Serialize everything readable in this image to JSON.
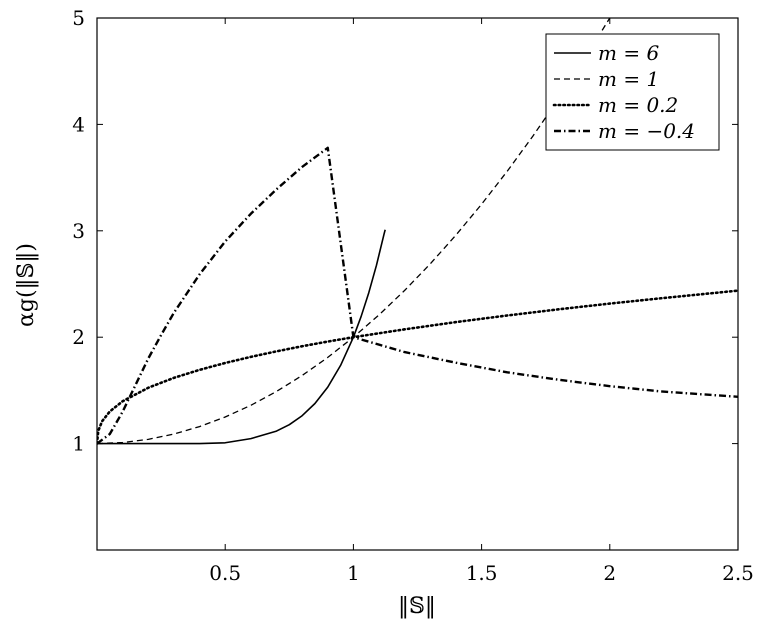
{
  "chart_data": {
    "type": "line",
    "xlabel": "‖𝕊‖",
    "ylabel": "αg(‖𝕊‖)",
    "xlim": [
      0,
      2.5
    ],
    "ylim": [
      0,
      5
    ],
    "x_ticks": [
      0.5,
      1,
      1.5,
      2,
      2.5
    ],
    "x_tick_labels": [
      "0.5",
      "1",
      "1.5",
      "2",
      "2.5"
    ],
    "y_ticks": [
      1,
      2,
      3,
      4,
      5
    ],
    "y_tick_labels": [
      "1",
      "2",
      "3",
      "4",
      "5"
    ],
    "grid": false,
    "legend_position": "top-right",
    "series": [
      {
        "name": "m = 6",
        "style": "solid",
        "color": "#000000",
        "x": [
          0,
          0.1,
          0.2,
          0.3,
          0.4,
          0.5,
          0.6,
          0.7,
          0.75,
          0.8,
          0.85,
          0.9,
          0.95,
          1.0,
          1.03,
          1.06,
          1.09,
          1.12,
          1.124
        ],
        "y": [
          1,
          1,
          1,
          1,
          1.0002,
          1.0078,
          1.0467,
          1.1176,
          1.178,
          1.262,
          1.377,
          1.531,
          1.735,
          2.0,
          2.194,
          2.418,
          2.677,
          2.974,
          3.01
        ]
      },
      {
        "name": "m = 1",
        "style": "dashed",
        "color": "#000000",
        "x": [
          0,
          0.1,
          0.2,
          0.3,
          0.4,
          0.5,
          0.6,
          0.7,
          0.8,
          0.9,
          1.0,
          1.1,
          1.2,
          1.3,
          1.4,
          1.5,
          1.6,
          1.7,
          1.8,
          1.9,
          2.0
        ],
        "y": [
          1,
          1.01,
          1.04,
          1.09,
          1.16,
          1.25,
          1.36,
          1.49,
          1.64,
          1.81,
          2.0,
          2.21,
          2.44,
          2.69,
          2.96,
          3.25,
          3.56,
          3.89,
          4.24,
          4.61,
          5.0
        ]
      },
      {
        "name": "m = 0.2",
        "style": "dotted",
        "color": "#000000",
        "x": [
          0.0,
          0.005,
          0.02,
          0.05,
          0.1,
          0.2,
          0.3,
          0.4,
          0.5,
          0.6,
          0.7,
          0.8,
          0.9,
          1.0,
          1.2,
          1.4,
          1.6,
          1.8,
          2.0,
          2.2,
          2.5
        ],
        "y": [
          1.0,
          1.12,
          1.21,
          1.302,
          1.398,
          1.525,
          1.618,
          1.693,
          1.758,
          1.815,
          1.867,
          1.915,
          1.959,
          2.0,
          2.074,
          2.142,
          2.204,
          2.262,
          2.316,
          2.366,
          2.438
        ]
      },
      {
        "name": "m = −0.4",
        "style": "dashdot",
        "color": "#000000",
        "x": [
          0.0,
          0.05,
          0.1,
          0.15,
          0.2,
          0.25,
          0.3,
          0.4,
          0.5,
          0.6,
          0.7,
          0.8,
          0.9,
          1.0,
          1.2,
          1.4,
          1.6,
          1.8,
          2.0,
          2.2,
          2.5
        ],
        "y": [
          1.0,
          1.09,
          1.3,
          1.55,
          1.8,
          2.02,
          2.23,
          2.59,
          2.9,
          3.16,
          3.39,
          3.6,
          3.78,
          2.0,
          1.86,
          1.76,
          1.67,
          1.6,
          1.54,
          1.49,
          1.44
        ]
      }
    ]
  }
}
